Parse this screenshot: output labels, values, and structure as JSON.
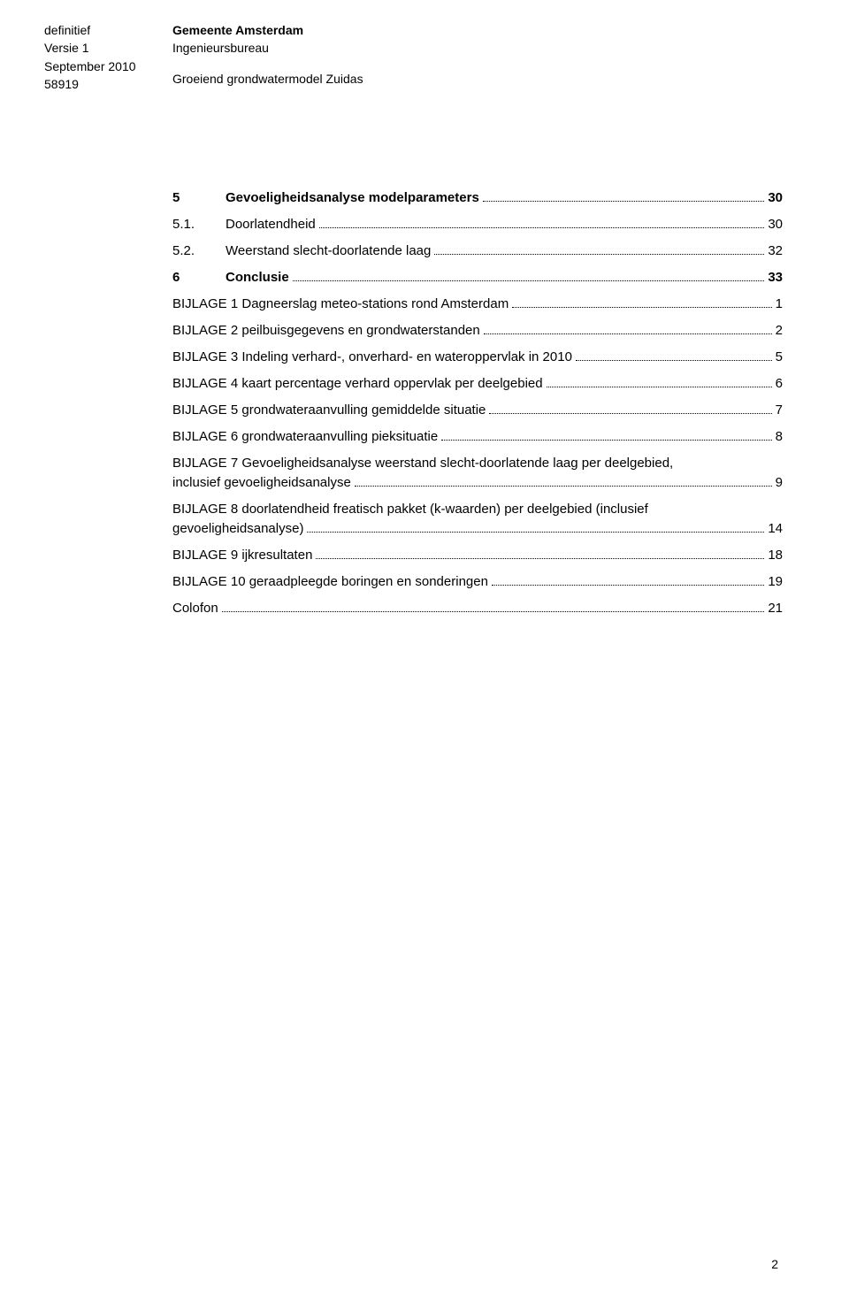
{
  "header": {
    "left": {
      "line1": "definitief",
      "line2": "Versie 1",
      "line3": "September 2010",
      "line4": "58919"
    },
    "right": {
      "line1": "Gemeente Amsterdam",
      "line2": "Ingenieursbureau",
      "line3": "Groeiend grondwatermodel Zuidas"
    }
  },
  "toc": {
    "sections": [
      {
        "num": "5",
        "title": "Gevoeligheidsanalyse modelparameters",
        "page": "30",
        "bold": true
      },
      {
        "num": "5.1.",
        "title": "Doorlatendheid",
        "page": "30",
        "bold": false
      },
      {
        "num": "5.2.",
        "title": "Weerstand slecht-doorlatende laag",
        "page": "32",
        "bold": false
      },
      {
        "num": "6",
        "title": "Conclusie",
        "page": "33",
        "bold": true
      }
    ],
    "bijlagen": [
      {
        "title": "BIJLAGE 1 Dagneerslag meteo-stations rond Amsterdam",
        "page": "1",
        "multiline": false
      },
      {
        "title": "BIJLAGE 2 peilbuisgegevens en grondwaterstanden",
        "page": "2",
        "multiline": false
      },
      {
        "title": "BIJLAGE 3 Indeling verhard-, onverhard- en wateroppervlak in 2010",
        "page": "5",
        "multiline": false
      },
      {
        "title": "BIJLAGE 4 kaart percentage verhard oppervlak per deelgebied",
        "page": "6",
        "multiline": false
      },
      {
        "title": "BIJLAGE 5 grondwateraanvulling gemiddelde situatie",
        "page": "7",
        "multiline": false
      },
      {
        "title": "BIJLAGE 6 grondwateraanvulling pieksituatie",
        "page": "8",
        "multiline": false
      },
      {
        "title_line1": "BIJLAGE 7 Gevoeligheidsanalyse weerstand slecht-doorlatende laag per deelgebied,",
        "title_line2": "inclusief gevoeligheidsanalyse",
        "page": "9",
        "multiline": true
      },
      {
        "title_line1": "BIJLAGE 8 doorlatendheid freatisch pakket (k-waarden) per deelgebied (inclusief",
        "title_line2": "gevoeligheidsanalyse)",
        "page": "14",
        "multiline": true
      },
      {
        "title": "BIJLAGE 9 ijkresultaten",
        "page": "18",
        "multiline": false
      },
      {
        "title": "BIJLAGE 10 geraadpleegde boringen en sonderingen",
        "page": "19",
        "multiline": false
      },
      {
        "title": "Colofon",
        "page": "21",
        "multiline": false
      }
    ]
  },
  "page_number": "2",
  "colors": {
    "text": "#000000",
    "background": "#ffffff"
  },
  "font": {
    "family": "Arial",
    "body_size_pt": 11,
    "header_size_pt": 10
  }
}
